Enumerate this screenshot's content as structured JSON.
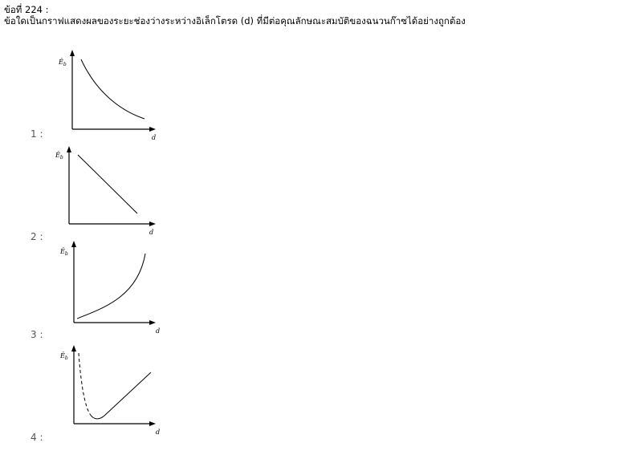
{
  "question": {
    "number_label": "ข้อที่ 224 :",
    "text": "ข้อใดเป็นกราฟแสดงผลของระยะช่องว่างระหว่างอิเล็กโตรด (d) ที่มีต่อคุณลักษณะสมบัติของฉนวนก๊าซได้อย่างถูกต้อง"
  },
  "choices": [
    {
      "label": "1 :",
      "y_axis_label": "Ê",
      "y_axis_sub": "b",
      "x_axis_label": "d",
      "curve": "decreasing convex"
    },
    {
      "label": "2 :",
      "y_axis_label": "Ê",
      "y_axis_sub": "b",
      "x_axis_label": "d",
      "curve": "linear decreasing"
    },
    {
      "label": "3 :",
      "y_axis_label": "Ê",
      "y_axis_sub": "b",
      "x_axis_label": "d",
      "curve": "increasing convex"
    },
    {
      "label": "4 :",
      "y_axis_label": "Ê",
      "y_axis_sub": "b",
      "x_axis_label": "d",
      "curve": "dashed drop to minimum then linear rise"
    }
  ]
}
